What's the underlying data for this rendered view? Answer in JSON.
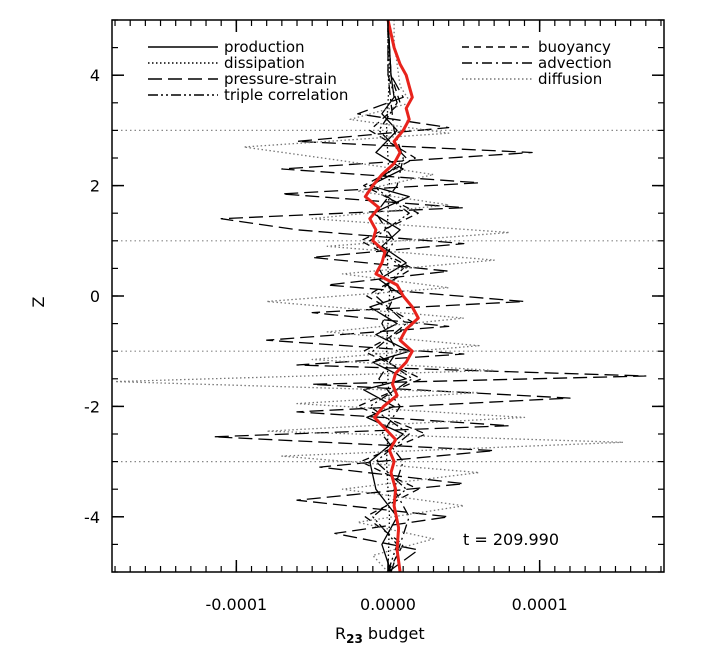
{
  "chart_data": {
    "type": "line",
    "title": "",
    "xlabel_main": "R",
    "xlabel_sub": "23",
    "xlabel_rest": " budget",
    "ylabel": "Z",
    "xlim": [
      -0.000182,
      0.000182
    ],
    "ylim": [
      -5,
      5
    ],
    "xticks": [
      {
        "v": -0.0001,
        "label": "-0.0001"
      },
      {
        "v": 0.0,
        "label": "0.0000"
      },
      {
        "v": 0.0001,
        "label": "0.0001"
      }
    ],
    "yticks": [
      {
        "v": -4,
        "label": "-4"
      },
      {
        "v": -2,
        "label": "-2"
      },
      {
        "v": 0,
        "label": "0"
      },
      {
        "v": 2,
        "label": "2"
      },
      {
        "v": 4,
        "label": "4"
      }
    ],
    "time_label": "t = 209.990",
    "grid": "dotted horizontal lines at odd z",
    "legend_position": "top",
    "series": [
      {
        "name": "production",
        "style": "solid",
        "color": "#000000",
        "points": [
          [
            -5,
            2e-06
          ],
          [
            -4.5,
            -4e-06
          ],
          [
            -4,
            6e-06
          ],
          [
            -3.5,
            -8e-06
          ],
          [
            -3,
            -1.2e-05
          ],
          [
            -2.5,
            1e-05
          ],
          [
            -2.2,
            -1.4e-05
          ],
          [
            -2,
            4e-06
          ],
          [
            -1.7,
            -1.6e-05
          ],
          [
            -1.5,
            1.2e-05
          ],
          [
            -1.2,
            -1e-05
          ],
          [
            -1,
            1.4e-05
          ],
          [
            -0.7,
            -8e-06
          ],
          [
            -0.5,
            6e-06
          ],
          [
            -0.2,
            -1.2e-05
          ],
          [
            0,
            1e-05
          ],
          [
            0.3,
            -6e-06
          ],
          [
            0.6,
            1.2e-05
          ],
          [
            0.9,
            -4e-06
          ],
          [
            1.2,
            8e-06
          ],
          [
            1.5,
            -1e-05
          ],
          [
            1.8,
            1.4e-05
          ],
          [
            2,
            -1.2e-05
          ],
          [
            2.3,
            1e-05
          ],
          [
            2.6,
            -8e-06
          ],
          [
            3,
            6e-06
          ],
          [
            3.3,
            -4e-06
          ],
          [
            3.6,
            4e-06
          ],
          [
            4,
            2e-06
          ],
          [
            4.5,
            1e-06
          ],
          [
            5,
            0.0
          ]
        ]
      },
      {
        "name": "dissipation",
        "style": "dotted",
        "color": "#000000",
        "points": [
          [
            -5,
            0.0
          ],
          [
            -4,
            1e-06
          ],
          [
            -3,
            -1e-06
          ],
          [
            -2,
            1e-06
          ],
          [
            -1,
            -1e-06
          ],
          [
            0,
            1e-06
          ],
          [
            1,
            -1e-06
          ],
          [
            2,
            1e-06
          ],
          [
            3,
            -1e-06
          ],
          [
            4,
            1e-06
          ],
          [
            5,
            0.0
          ]
        ]
      },
      {
        "name": "pressure-strain",
        "style": "longdash",
        "color": "#000000",
        "points": [
          [
            -5,
            0.0
          ],
          [
            -4.6,
            2e-05
          ],
          [
            -4.3,
            -3.5e-05
          ],
          [
            -4,
            4e-05
          ],
          [
            -3.7,
            -6e-05
          ],
          [
            -3.4,
            5e-05
          ],
          [
            -3.1,
            -4.5e-05
          ],
          [
            -2.8,
            7e-05
          ],
          [
            -2.55,
            -0.000115
          ],
          [
            -2.35,
            8e-05
          ],
          [
            -2.1,
            -6e-05
          ],
          [
            -1.85,
            0.00012
          ],
          [
            -1.6,
            -5e-05
          ],
          [
            -1.45,
            0.00017
          ],
          [
            -1.25,
            -6e-05
          ],
          [
            -1.05,
            5e-05
          ],
          [
            -0.8,
            -8e-05
          ],
          [
            -0.55,
            4e-05
          ],
          [
            -0.3,
            -5e-05
          ],
          [
            -0.1,
            9e-05
          ],
          [
            0.2,
            -4e-05
          ],
          [
            0.45,
            4e-05
          ],
          [
            0.7,
            -5e-05
          ],
          [
            0.95,
            5e-05
          ],
          [
            1.2,
            -6e-05
          ],
          [
            1.4,
            -0.00011
          ],
          [
            1.6,
            5e-05
          ],
          [
            1.85,
            -7e-05
          ],
          [
            2.05,
            6e-05
          ],
          [
            2.3,
            -7e-05
          ],
          [
            2.6,
            9.5e-05
          ],
          [
            2.8,
            -6e-05
          ],
          [
            3.05,
            4e-05
          ],
          [
            3.3,
            -2e-05
          ],
          [
            3.6,
            1e-05
          ],
          [
            4,
            2e-06
          ],
          [
            5,
            0.0
          ]
        ]
      },
      {
        "name": "triple correlation",
        "style": "dashdotdot",
        "color": "#000000",
        "points": [
          [
            -5,
            0.0
          ],
          [
            -4.5,
            6e-06
          ],
          [
            -4,
            -1e-05
          ],
          [
            -3.5,
            1.2e-05
          ],
          [
            -3,
            -8e-06
          ],
          [
            -2.5,
            1.4e-05
          ],
          [
            -2,
            -1.2e-05
          ],
          [
            -1.5,
            1.6e-05
          ],
          [
            -1,
            -1e-05
          ],
          [
            -0.5,
            1.2e-05
          ],
          [
            0,
            -8e-06
          ],
          [
            0.5,
            1e-05
          ],
          [
            1,
            -1.2e-05
          ],
          [
            1.5,
            1.4e-05
          ],
          [
            2,
            -1e-05
          ],
          [
            2.5,
            1.2e-05
          ],
          [
            3,
            -6e-06
          ],
          [
            3.5,
            6e-06
          ],
          [
            4,
            0.0
          ],
          [
            5,
            0.0
          ]
        ]
      },
      {
        "name": "buoyancy",
        "style": "shortdash",
        "color": "#000000",
        "points": [
          [
            -5,
            0.0
          ],
          [
            -4.5,
            1e-05
          ],
          [
            -4,
            -1.5e-05
          ],
          [
            -3.5,
            2e-05
          ],
          [
            -3,
            -1.8e-05
          ],
          [
            -2.5,
            2.5e-05
          ],
          [
            -2,
            -2e-05
          ],
          [
            -1.5,
            2.2e-05
          ],
          [
            -1,
            -1.6e-05
          ],
          [
            -0.5,
            1.8e-05
          ],
          [
            0,
            -1.4e-05
          ],
          [
            0.5,
            1.6e-05
          ],
          [
            1,
            -1.8e-05
          ],
          [
            1.5,
            2e-05
          ],
          [
            2,
            -1.6e-05
          ],
          [
            2.5,
            1.8e-05
          ],
          [
            3,
            -1.2e-05
          ],
          [
            3.5,
            8e-06
          ],
          [
            4,
            2e-06
          ],
          [
            5,
            0.0
          ]
        ]
      },
      {
        "name": "advection",
        "style": "dashdot",
        "color": "#000000",
        "points": [
          [
            -5,
            2e-06
          ],
          [
            -4.5,
            8e-06
          ],
          [
            -4,
            1.4e-05
          ],
          [
            -3.5,
            4e-06
          ],
          [
            -3,
            1e-05
          ],
          [
            -2.5,
            -4e-06
          ],
          [
            -2,
            8e-06
          ],
          [
            -1.5,
            -6e-06
          ],
          [
            -1,
            6e-06
          ],
          [
            -0.5,
            -4e-06
          ],
          [
            0,
            4e-06
          ],
          [
            0.5,
            -6e-06
          ],
          [
            1,
            4e-06
          ],
          [
            1.5,
            -8e-06
          ],
          [
            2,
            6e-06
          ],
          [
            2.5,
            1e-05
          ],
          [
            3,
            4e-06
          ],
          [
            3.5,
            2e-06
          ],
          [
            4,
            0.0
          ],
          [
            5,
            0.0
          ]
        ]
      },
      {
        "name": "diffusion",
        "style": "dotted",
        "color": "#777777",
        "points": [
          [
            -5,
            0.0
          ],
          [
            -4.7,
            -1e-05
          ],
          [
            -4.4,
            3e-05
          ],
          [
            -4.1,
            -2e-05
          ],
          [
            -3.8,
            5e-05
          ],
          [
            -3.5,
            -3e-05
          ],
          [
            -3.2,
            6e-05
          ],
          [
            -2.9,
            -7e-05
          ],
          [
            -2.65,
            0.000155
          ],
          [
            -2.45,
            -8e-05
          ],
          [
            -2.2,
            9e-05
          ],
          [
            -1.95,
            -6e-05
          ],
          [
            -1.75,
            6e-05
          ],
          [
            -1.55,
            -0.00018
          ],
          [
            -1.35,
            7e-05
          ],
          [
            -1.15,
            -5e-05
          ],
          [
            -0.9,
            6e-05
          ],
          [
            -0.65,
            -4e-05
          ],
          [
            -0.4,
            5e-05
          ],
          [
            -0.1,
            -8e-05
          ],
          [
            0.15,
            4e-05
          ],
          [
            0.4,
            -3e-05
          ],
          [
            0.65,
            7e-05
          ],
          [
            0.9,
            -4e-05
          ],
          [
            1.15,
            8e-05
          ],
          [
            1.4,
            -5e-05
          ],
          [
            1.65,
            4e-05
          ],
          [
            1.9,
            -2e-05
          ],
          [
            2.2,
            3e-05
          ],
          [
            2.45,
            -3e-05
          ],
          [
            2.7,
            -9.5e-05
          ],
          [
            2.95,
            4e-05
          ],
          [
            3.2,
            -2.5e-05
          ],
          [
            3.5,
            1.5e-05
          ],
          [
            3.8,
            8e-06
          ],
          [
            4.2,
            6e-06
          ],
          [
            4.6,
            4e-06
          ],
          [
            5,
            4e-06
          ]
        ]
      },
      {
        "name": "",
        "style": "solid",
        "color": "#e8231c",
        "points": [
          [
            -5,
            8e-06
          ],
          [
            -4.6,
            6e-06
          ],
          [
            -4.2,
            7e-06
          ],
          [
            -3.8,
            4e-06
          ],
          [
            -3.5,
            5e-06
          ],
          [
            -3.2,
            2e-06
          ],
          [
            -3,
            4e-06
          ],
          [
            -2.8,
            1e-06
          ],
          [
            -2.6,
            5e-06
          ],
          [
            -2.4,
            -2e-06
          ],
          [
            -2.2,
            -9e-06
          ],
          [
            -2,
            -3e-06
          ],
          [
            -1.8,
            6e-06
          ],
          [
            -1.6,
            3e-06
          ],
          [
            -1.4,
            5e-06
          ],
          [
            -1.2,
            1.2e-05
          ],
          [
            -1,
            1.6e-05
          ],
          [
            -0.8,
            8e-06
          ],
          [
            -0.6,
            1.2e-05
          ],
          [
            -0.4,
            2e-05
          ],
          [
            -0.2,
            1.6e-05
          ],
          [
            0,
            1e-05
          ],
          [
            0.2,
            6e-06
          ],
          [
            0.4,
            -8e-06
          ],
          [
            0.6,
            -4e-06
          ],
          [
            0.8,
            -2e-06
          ],
          [
            1,
            -1e-05
          ],
          [
            1.2,
            -8e-06
          ],
          [
            1.4,
            -1.2e-05
          ],
          [
            1.6,
            -6e-06
          ],
          [
            1.8,
            -1.5e-05
          ],
          [
            2,
            -1e-05
          ],
          [
            2.2,
            -4e-06
          ],
          [
            2.4,
            4e-06
          ],
          [
            2.6,
            8e-06
          ],
          [
            2.8,
            4e-06
          ],
          [
            3,
            1e-05
          ],
          [
            3.2,
            1.4e-05
          ],
          [
            3.4,
            1.2e-05
          ],
          [
            3.6,
            1.6e-05
          ],
          [
            3.8,
            1.4e-05
          ],
          [
            4,
            1.2e-05
          ],
          [
            4.2,
            8e-06
          ],
          [
            4.5,
            4e-06
          ],
          [
            5,
            0.0
          ]
        ]
      }
    ]
  }
}
